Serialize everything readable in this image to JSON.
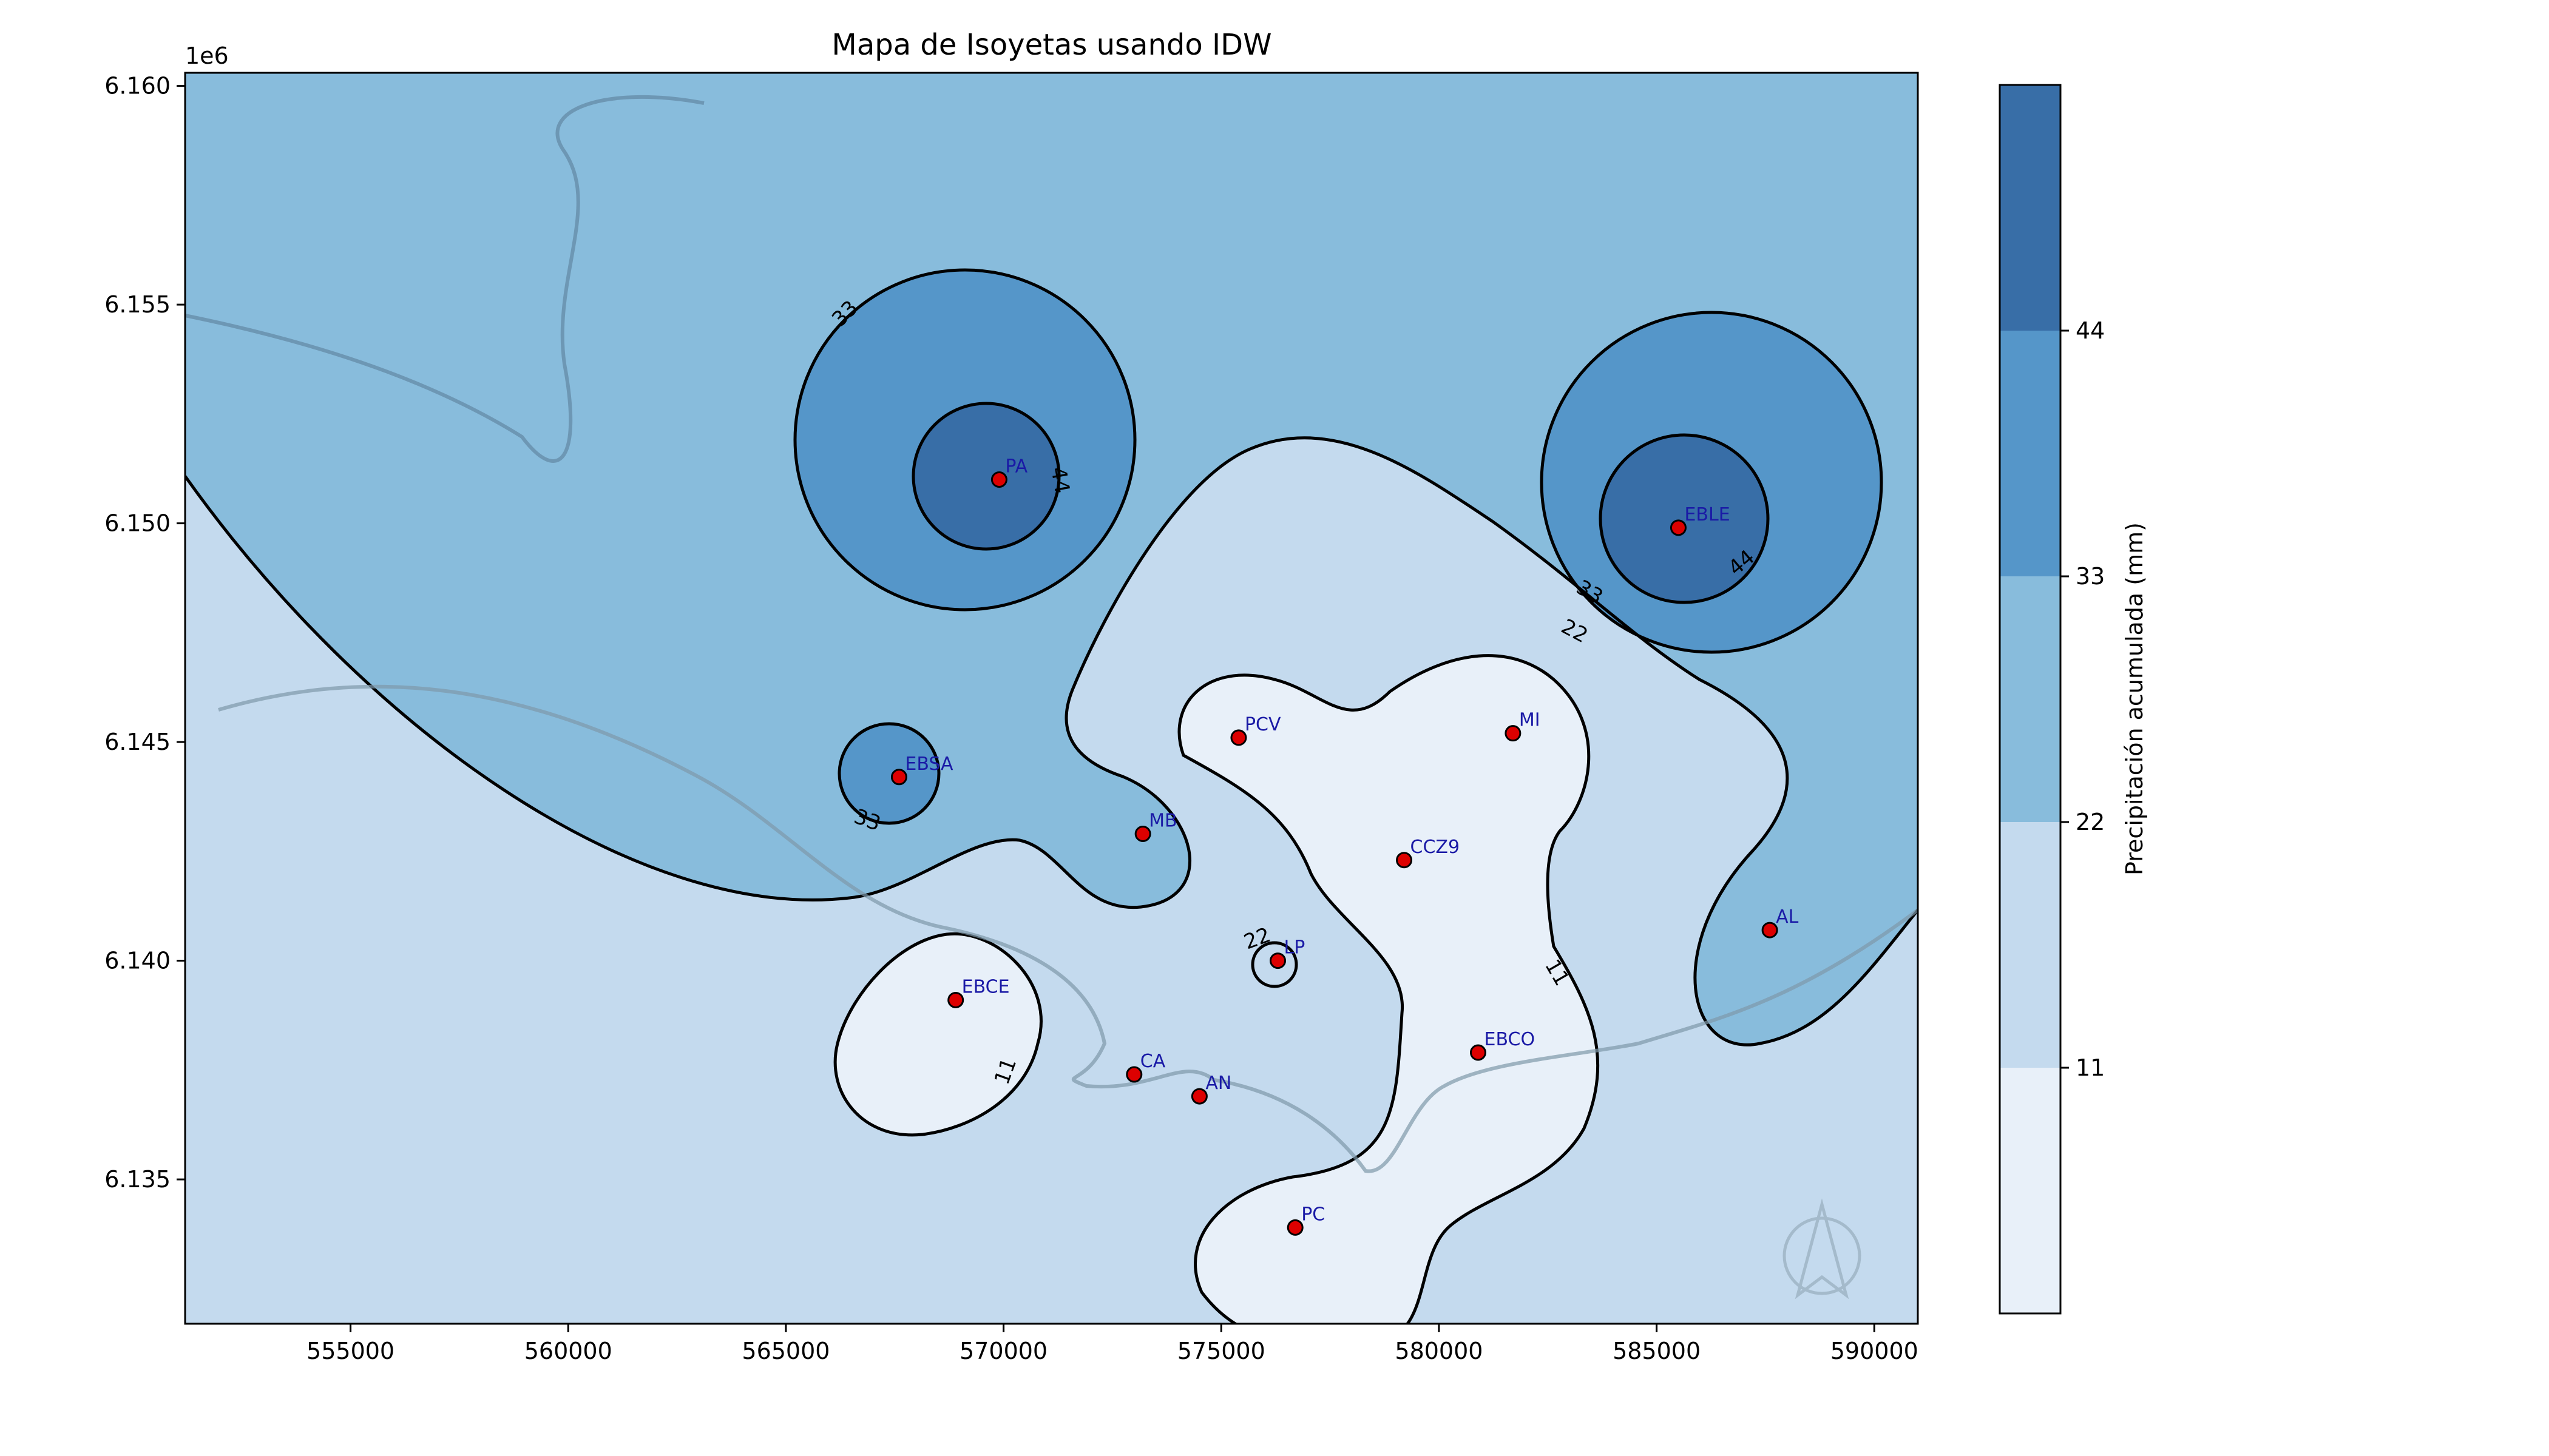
{
  "title": "Mapa de Isoyetas usando IDW",
  "axes": {
    "x_range": [
      551200,
      591000
    ],
    "y_range": [
      6131700,
      6160300
    ],
    "x_ticks": [
      555000,
      560000,
      565000,
      570000,
      575000,
      580000,
      585000,
      590000
    ],
    "x_tick_labels": [
      "555000",
      "560000",
      "565000",
      "570000",
      "575000",
      "580000",
      "585000",
      "590000"
    ],
    "y_ticks": [
      6135000,
      6140000,
      6145000,
      6150000,
      6155000,
      6160000
    ],
    "y_tick_labels": [
      "6.135",
      "6.140",
      "6.145",
      "6.150",
      "6.155",
      "6.160"
    ],
    "y_offset_label": "1e6"
  },
  "colorbar": {
    "label": "Precipitación acumulada (mm)",
    "ticks": [
      "11",
      "22",
      "33",
      "44"
    ],
    "levels": [
      0,
      11,
      22,
      33,
      44,
      55
    ],
    "colors": [
      "#e8f0f9",
      "#c4daee",
      "#88bcdc",
      "#5596c9",
      "#386ea7"
    ]
  },
  "contour_labels": [
    "33",
    "44",
    "33",
    "44",
    "33",
    "22",
    "22",
    "11",
    "11"
  ],
  "stations": [
    {
      "name": "PA",
      "x": 569900,
      "y": 6151000
    },
    {
      "name": "EBLE",
      "x": 585500,
      "y": 6149900
    },
    {
      "name": "EBSA",
      "x": 567600,
      "y": 6144200
    },
    {
      "name": "PCV",
      "x": 575400,
      "y": 6145100
    },
    {
      "name": "MI",
      "x": 581700,
      "y": 6145200
    },
    {
      "name": "MB",
      "x": 573200,
      "y": 6142900
    },
    {
      "name": "CCZ9",
      "x": 579200,
      "y": 6142300
    },
    {
      "name": "AL",
      "x": 587600,
      "y": 6140700
    },
    {
      "name": "LP",
      "x": 576300,
      "y": 6140000
    },
    {
      "name": "EBCE",
      "x": 568900,
      "y": 6139100
    },
    {
      "name": "EBCO",
      "x": 580900,
      "y": 6137900
    },
    {
      "name": "CA",
      "x": 573000,
      "y": 6137400
    },
    {
      "name": "AN",
      "x": 574500,
      "y": 6136900
    },
    {
      "name": "PC",
      "x": 576700,
      "y": 6133900
    }
  ],
  "colors": {
    "station_fill": "#dd0000",
    "station_label": "#1a1aa6",
    "contour": "#000000"
  }
}
